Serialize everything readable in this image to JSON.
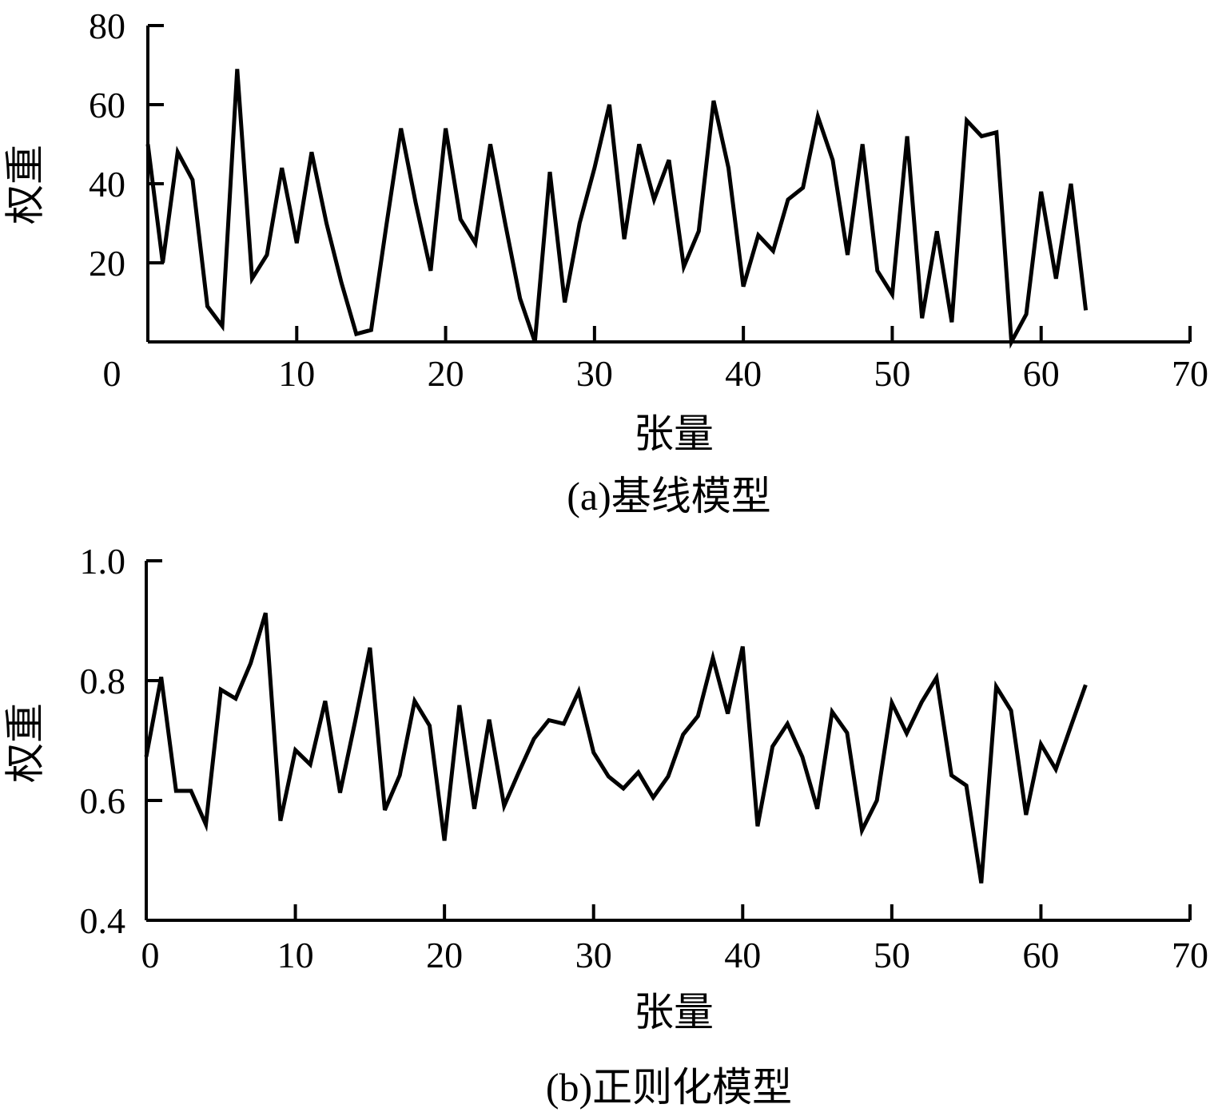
{
  "chart_data": [
    {
      "type": "line",
      "title": "(a)基线模型",
      "xlabel": "张量",
      "ylabel": "权重",
      "xlim": [
        0,
        70
      ],
      "ylim": [
        0,
        80
      ],
      "x_ticks": [
        "0",
        "10",
        "20",
        "30",
        "40",
        "50",
        "60",
        "70"
      ],
      "y_ticks": [
        "20",
        "40",
        "60",
        "80"
      ],
      "grid": false,
      "x": [
        0,
        1,
        2,
        3,
        4,
        5,
        6,
        7,
        8,
        9,
        10,
        11,
        12,
        13,
        14,
        15,
        16,
        17,
        18,
        19,
        20,
        21,
        22,
        23,
        24,
        25,
        26,
        27,
        28,
        29,
        30,
        31,
        32,
        33,
        34,
        35,
        36,
        37,
        38,
        39,
        40,
        41,
        42,
        43,
        44,
        45,
        46,
        47,
        48,
        49,
        50,
        51,
        52,
        53,
        54,
        55,
        56,
        57,
        58,
        59,
        60,
        61,
        62,
        63
      ],
      "values": [
        50,
        20,
        48,
        41,
        9,
        4,
        69,
        16,
        22,
        44,
        25,
        48,
        30,
        15,
        2,
        3,
        29,
        54,
        35,
        18,
        54,
        31,
        25,
        50,
        30,
        11,
        0,
        43,
        10,
        30,
        44,
        60,
        26,
        50,
        36,
        46,
        19,
        28,
        61,
        44,
        14,
        27,
        23,
        36,
        39,
        57,
        46,
        22,
        50,
        18,
        12,
        52,
        6,
        28,
        5,
        56,
        52,
        53,
        0,
        7,
        38,
        16,
        40,
        8
      ]
    },
    {
      "type": "line",
      "title": "(b)正则化模型",
      "xlabel": "张量",
      "ylabel": "权重",
      "xlim": [
        0,
        70
      ],
      "ylim": [
        0.4,
        1.0
      ],
      "x_ticks": [
        "0",
        "10",
        "20",
        "30",
        "40",
        "50",
        "60",
        "70"
      ],
      "y_ticks": [
        "0.4",
        "0.6",
        "0.8",
        "1.0"
      ],
      "grid": false,
      "x": [
        0,
        1,
        2,
        3,
        4,
        5,
        6,
        7,
        8,
        9,
        10,
        11,
        12,
        13,
        14,
        15,
        16,
        17,
        18,
        19,
        20,
        21,
        22,
        23,
        24,
        25,
        26,
        27,
        28,
        29,
        30,
        31,
        32,
        33,
        34,
        35,
        36,
        37,
        38,
        39,
        40,
        41,
        42,
        43,
        44,
        45,
        46,
        47,
        48,
        49,
        50,
        51,
        52,
        53,
        54,
        55,
        56,
        57,
        58,
        59,
        60,
        61,
        62,
        63
      ],
      "values": [
        0.673,
        0.806,
        0.616,
        0.616,
        0.56,
        0.785,
        0.77,
        0.829,
        0.913,
        0.566,
        0.684,
        0.66,
        0.766,
        0.613,
        0.731,
        0.855,
        0.584,
        0.642,
        0.766,
        0.725,
        0.533,
        0.759,
        0.586,
        0.735,
        0.591,
        0.648,
        0.703,
        0.734,
        0.728,
        0.782,
        0.68,
        0.64,
        0.62,
        0.647,
        0.605,
        0.64,
        0.71,
        0.741,
        0.838,
        0.745,
        0.857,
        0.557,
        0.69,
        0.728,
        0.673,
        0.586,
        0.748,
        0.713,
        0.55,
        0.6,
        0.763,
        0.712,
        0.764,
        0.805,
        0.642,
        0.625,
        0.462,
        0.79,
        0.75,
        0.576,
        0.694,
        0.652,
        0.723,
        0.793
      ]
    }
  ]
}
